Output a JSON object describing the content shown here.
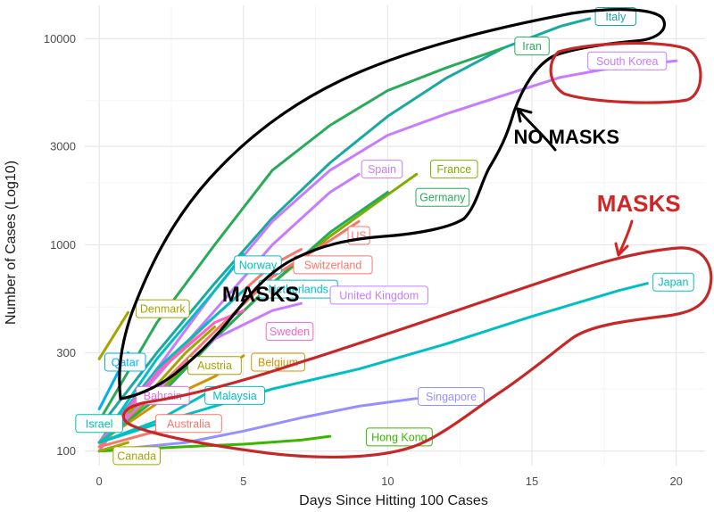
{
  "chart_data": {
    "type": "line",
    "xlabel": "Days Since Hitting 100 Cases",
    "ylabel": "Number of Cases (Log10)",
    "scale_y": "log10",
    "xlim": [
      -0.5,
      21
    ],
    "ylim": [
      85,
      14500
    ],
    "x_ticks": [
      0,
      5,
      10,
      15,
      20
    ],
    "y_ticks": [
      100,
      300,
      1000,
      3000,
      10000
    ],
    "y_tick_labels": [
      "100",
      "300",
      "1000",
      "3000",
      "10000"
    ],
    "grid": true,
    "series": [
      {
        "name": "Italy",
        "color": "#1aa99e",
        "x": [
          0,
          2,
          4,
          6,
          8,
          10,
          12,
          14,
          16,
          17
        ],
        "y": [
          130,
          300,
          650,
          1350,
          2500,
          4200,
          6400,
          9000,
          11500,
          12500
        ]
      },
      {
        "name": "Iran",
        "color": "#27ab59",
        "x": [
          0,
          2,
          4,
          6,
          8,
          10,
          12,
          14
        ],
        "y": [
          140,
          420,
          1000,
          2300,
          3800,
          5600,
          7200,
          9000
        ]
      },
      {
        "name": "South Korea",
        "color": "#c77cff",
        "x": [
          0,
          2,
          4,
          6,
          8,
          10,
          12,
          14,
          16,
          18,
          20
        ],
        "y": [
          100,
          250,
          600,
          1300,
          2300,
          3400,
          4300,
          5300,
          6500,
          7300,
          7800
        ]
      },
      {
        "name": "Spain",
        "color": "#c77cff",
        "x": [
          0,
          2,
          4,
          6,
          8,
          9
        ],
        "y": [
          110,
          230,
          480,
          1000,
          1800,
          2200
        ]
      },
      {
        "name": "France",
        "color": "#7cae00",
        "x": [
          0,
          2,
          4,
          6,
          8,
          10,
          11
        ],
        "y": [
          110,
          190,
          350,
          650,
          1100,
          1750,
          2200
        ]
      },
      {
        "name": "Germany",
        "color": "#27ab59",
        "x": [
          0,
          2,
          4,
          6,
          8,
          10
        ],
        "y": [
          110,
          180,
          350,
          650,
          1150,
          1800
        ]
      },
      {
        "name": "US",
        "color": "#f8766d",
        "x": [
          0,
          2,
          4,
          6,
          8,
          9
        ],
        "y": [
          105,
          200,
          380,
          700,
          1050,
          1300
        ]
      },
      {
        "name": "Norway",
        "color": "#00bfc4",
        "x": [
          0,
          2,
          4,
          5
        ],
        "y": [
          110,
          280,
          600,
          900
        ]
      },
      {
        "name": "Switzerland",
        "color": "#f8766d",
        "x": [
          0,
          2,
          4,
          6,
          7
        ],
        "y": [
          110,
          240,
          450,
          800,
          950
        ]
      },
      {
        "name": "Netherlands",
        "color": "#00bfc4",
        "x": [
          0,
          2,
          4,
          5
        ],
        "y": [
          110,
          250,
          450,
          600
        ]
      },
      {
        "name": "United Kingdom",
        "color": "#c77cff",
        "x": [
          0,
          2,
          4,
          6,
          7
        ],
        "y": [
          110,
          200,
          350,
          480,
          520
        ]
      },
      {
        "name": "Sweden",
        "color": "#ff61c3",
        "x": [
          0,
          2,
          4,
          5
        ],
        "y": [
          110,
          240,
          420,
          480
        ]
      },
      {
        "name": "Denmark",
        "color": "#a3a500",
        "x": [
          0,
          1
        ],
        "y": [
          280,
          470
        ]
      },
      {
        "name": "Qatar",
        "color": "#00b0f6",
        "x": [
          0,
          1
        ],
        "y": [
          160,
          300
        ]
      },
      {
        "name": "Austria",
        "color": "#a3a500",
        "x": [
          0,
          2,
          3,
          4
        ],
        "y": [
          110,
          210,
          300,
          400
        ]
      },
      {
        "name": "Belgium",
        "color": "#d39200",
        "x": [
          0,
          2,
          4,
          5
        ],
        "y": [
          110,
          170,
          230,
          290
        ]
      },
      {
        "name": "Bahrain",
        "color": "#e76bf3",
        "x": [
          0,
          1
        ],
        "y": [
          110,
          150
        ]
      },
      {
        "name": "Malaysia",
        "color": "#00bfc4",
        "x": [
          0,
          2,
          4
        ],
        "y": [
          110,
          140,
          200
        ]
      },
      {
        "name": "Japan",
        "color": "#00bfc4",
        "x": [
          0,
          3,
          6,
          9,
          12,
          15,
          18,
          19
        ],
        "y": [
          110,
          150,
          200,
          250,
          330,
          450,
          600,
          650
        ]
      },
      {
        "name": "Singapore",
        "color": "#9590ff",
        "x": [
          0,
          3,
          5,
          7,
          9,
          11
        ],
        "y": [
          100,
          110,
          125,
          145,
          165,
          180
        ]
      },
      {
        "name": "Israel",
        "color": "#00c0af",
        "x": [
          0,
          1
        ],
        "y": [
          110,
          140
        ]
      },
      {
        "name": "Australia",
        "color": "#f8766d",
        "x": [
          0,
          2
        ],
        "y": [
          105,
          125
        ]
      },
      {
        "name": "Hong Kong",
        "color": "#39b600",
        "x": [
          0,
          3,
          5,
          7,
          8
        ],
        "y": [
          100,
          105,
          108,
          113,
          118
        ]
      },
      {
        "name": "Canada",
        "color": "#a3a500",
        "x": [
          0,
          1
        ],
        "y": [
          100,
          110
        ]
      }
    ],
    "labels": [
      {
        "text": "Italy",
        "color": "#1aa99e",
        "x": 17.9,
        "y": 12800
      },
      {
        "text": "Iran",
        "color": "#27ab59",
        "x": 15.0,
        "y": 9200
      },
      {
        "text": "South Korea",
        "color": "#c77cff",
        "x": 18.3,
        "y": 7800
      },
      {
        "text": "Spain",
        "color": "#c77cff",
        "x": 9.8,
        "y": 2330
      },
      {
        "text": "France",
        "color": "#7cae00",
        "x": 12.3,
        "y": 2330
      },
      {
        "text": "Germany",
        "color": "#27ab59",
        "x": 11.9,
        "y": 1700
      },
      {
        "text": "US",
        "color": "#f8766d",
        "x": 9.0,
        "y": 1110
      },
      {
        "text": "Norway",
        "color": "#00bfc4",
        "x": 5.5,
        "y": 800
      },
      {
        "text": "Switzerland",
        "color": "#f8766d",
        "x": 8.1,
        "y": 800
      },
      {
        "text": "Netherlands",
        "color": "#00bfc4",
        "x": 6.9,
        "y": 610
      },
      {
        "text": "United Kingdom",
        "color": "#c77cff",
        "x": 9.7,
        "y": 570
      },
      {
        "text": "Sweden",
        "color": "#ff61c3",
        "x": 6.6,
        "y": 380
      },
      {
        "text": "Denmark",
        "color": "#a3a500",
        "x": 2.2,
        "y": 490
      },
      {
        "text": "Qatar",
        "color": "#00b0f6",
        "x": 0.9,
        "y": 270
      },
      {
        "text": "Austria",
        "color": "#a3a500",
        "x": 4.0,
        "y": 260
      },
      {
        "text": "Belgium",
        "color": "#d39200",
        "x": 6.2,
        "y": 270
      },
      {
        "text": "Bahrain",
        "color": "#e76bf3",
        "x": 2.2,
        "y": 186
      },
      {
        "text": "Malaysia",
        "color": "#00bfc4",
        "x": 4.7,
        "y": 186
      },
      {
        "text": "Japan",
        "color": "#00bfc4",
        "x": 19.9,
        "y": 660
      },
      {
        "text": "Singapore",
        "color": "#9590ff",
        "x": 12.2,
        "y": 184
      },
      {
        "text": "Israel",
        "color": "#00c0af",
        "x": 0.0,
        "y": 136
      },
      {
        "text": "Australia",
        "color": "#f8766d",
        "x": 3.1,
        "y": 136
      },
      {
        "text": "Hong Kong",
        "color": "#39b600",
        "x": 10.4,
        "y": 117
      },
      {
        "text": "Canada",
        "color": "#a3a500",
        "x": 1.3,
        "y": 95
      }
    ],
    "annotations": [
      {
        "text": "NO MASKS",
        "color": "#000000",
        "x": 16.2,
        "y": 3100
      },
      {
        "text": "MASKS",
        "color": "#d22525",
        "x": 18.7,
        "y": 1450
      },
      {
        "text": "MASKS",
        "color": "#000000",
        "x": 5.6,
        "y": 530
      }
    ],
    "region_outlines": [
      {
        "name": "no-masks-outline",
        "color": "#000000"
      },
      {
        "name": "south-korea-outline",
        "color": "#c62828"
      },
      {
        "name": "masks-outline",
        "color": "#c62828"
      }
    ]
  }
}
